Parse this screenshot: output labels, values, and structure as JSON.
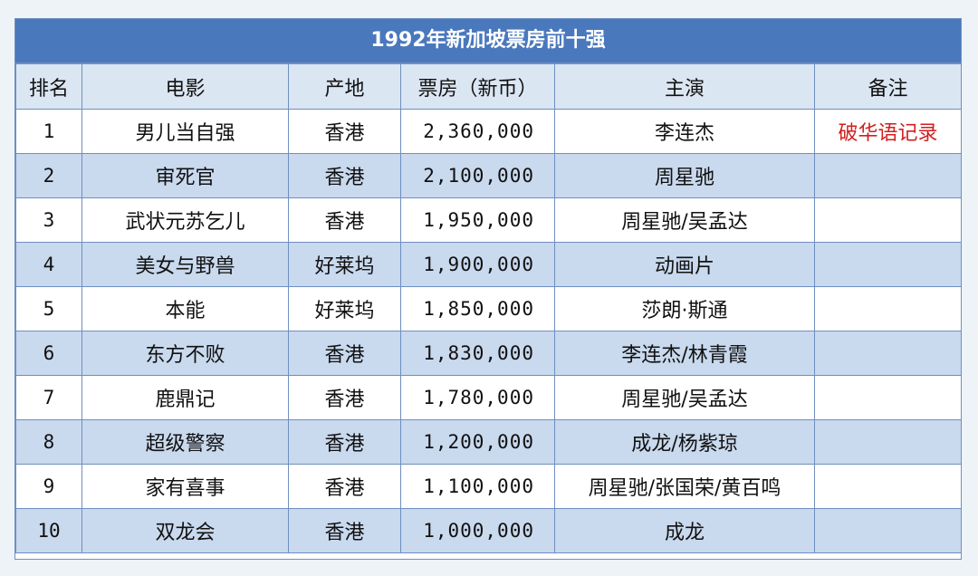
{
  "title": "1992年新加坡票房前十强",
  "headers": [
    "排名",
    "电影",
    "产地",
    "票房（新币）",
    "主演",
    "备注"
  ],
  "rows": [
    {
      "rank": "1",
      "film": "男儿当自强",
      "origin": "香港",
      "box": "2,360,000",
      "stars": "李连杰",
      "note": "破华语记录"
    },
    {
      "rank": "2",
      "film": "审死官",
      "origin": "香港",
      "box": "2,100,000",
      "stars": "周星驰",
      "note": ""
    },
    {
      "rank": "3",
      "film": "武状元苏乞儿",
      "origin": "香港",
      "box": "1,950,000",
      "stars": "周星驰/吴孟达",
      "note": ""
    },
    {
      "rank": "4",
      "film": "美女与野兽",
      "origin": "好莱坞",
      "box": "1,900,000",
      "stars": "动画片",
      "note": ""
    },
    {
      "rank": "5",
      "film": "本能",
      "origin": "好莱坞",
      "box": "1,850,000",
      "stars": "莎朗·斯通",
      "note": ""
    },
    {
      "rank": "6",
      "film": "东方不败",
      "origin": "香港",
      "box": "1,830,000",
      "stars": "李连杰/林青霞",
      "note": ""
    },
    {
      "rank": "7",
      "film": "鹿鼎记",
      "origin": "香港",
      "box": "1,780,000",
      "stars": "周星驰/吴孟达",
      "note": ""
    },
    {
      "rank": "8",
      "film": "超级警察",
      "origin": "香港",
      "box": "1,200,000",
      "stars": "成龙/杨紫琼",
      "note": ""
    },
    {
      "rank": "9",
      "film": "家有喜事",
      "origin": "香港",
      "box": "1,100,000",
      "stars": "周星驰/张国荣/黄百鸣",
      "note": ""
    },
    {
      "rank": "10",
      "film": "双龙会",
      "origin": "香港",
      "box": "1,000,000",
      "stars": "成龙",
      "note": ""
    }
  ],
  "colors": {
    "title_bg": "#4a78bd",
    "shade_row": "#c9d9ee",
    "note_red": "#d21f1f",
    "border": "#6f8fbf"
  }
}
